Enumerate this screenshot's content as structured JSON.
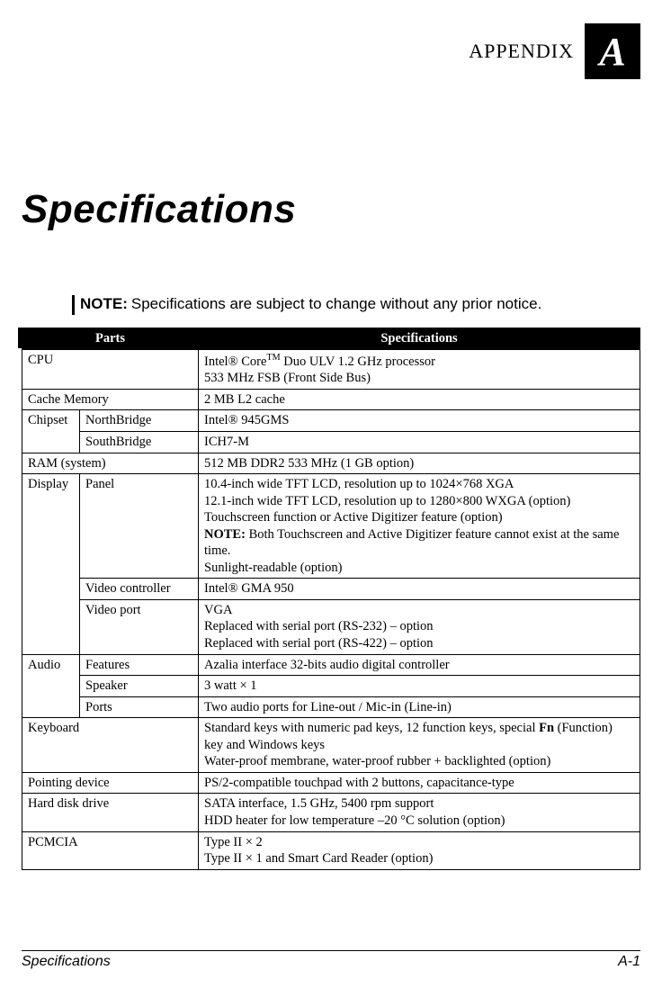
{
  "appendix": {
    "label": "APPENDIX",
    "letter": "A"
  },
  "title": "Specifications",
  "note": {
    "label": "NOTE:",
    "text": "Specifications are subject to change without any prior notice."
  },
  "table": {
    "headers": {
      "parts": "Parts",
      "specs": "Specifications"
    },
    "rows": {
      "cpu": {
        "part": "CPU",
        "spec_pre": "Intel® Core",
        "spec_sup": "TM",
        "spec_post": " Duo ULV 1.2 GHz processor",
        "spec_line2": "533 MHz FSB (Front Side Bus)"
      },
      "cache": {
        "part": "Cache Memory",
        "spec": "2 MB L2 cache"
      },
      "chipset": {
        "part": "Chipset",
        "nb": {
          "label": "NorthBridge",
          "spec": "Intel® 945GMS"
        },
        "sb": {
          "label": "SouthBridge",
          "spec": "ICH7-M"
        }
      },
      "ram": {
        "part": "RAM (system)",
        "spec": "512 MB DDR2 533 MHz (1 GB option)"
      },
      "display": {
        "part": "Display",
        "panel": {
          "label": "Panel",
          "l1": "10.4-inch wide TFT LCD, resolution up to 1024×768 XGA",
          "l2": "12.1-inch wide TFT LCD, resolution up to 1280×800 WXGA (option)",
          "l3": "Touchscreen function or Active Digitizer feature (option)",
          "l4_b": "NOTE:",
          "l4": " Both Touchscreen and Active Digitizer feature cannot exist at the same time.",
          "l5": "Sunlight-readable (option)"
        },
        "vctrl": {
          "label": "Video controller",
          "spec": "Intel® GMA 950"
        },
        "vport": {
          "label": "Video port",
          "l1": "VGA",
          "l2": "Replaced with serial port (RS-232) – option",
          "l3": "Replaced with serial port (RS-422) – option"
        }
      },
      "audio": {
        "part": "Audio",
        "feat": {
          "label": "Features",
          "spec": "Azalia interface 32-bits audio digital controller"
        },
        "spk": {
          "label": "Speaker",
          "spec": "3 watt × 1"
        },
        "ports": {
          "label": "Ports",
          "spec": "Two audio ports for Line-out / Mic-in (Line-in)"
        }
      },
      "keyboard": {
        "part": "Keyboard",
        "l1_pre": "Standard keys with numeric pad keys, 12 function keys, special ",
        "l1_b": "Fn",
        "l1_post": " (Function) key and Windows keys",
        "l2": "Water-proof membrane, water-proof rubber + backlighted (option)"
      },
      "pointing": {
        "part": "Pointing device",
        "spec": "PS/2-compatible touchpad with 2 buttons, capacitance-type"
      },
      "hdd": {
        "part": "Hard disk drive",
        "l1": "SATA interface, 1.5 GHz, 5400 rpm support",
        "l2": "HDD heater for low temperature –20 °C solution (option)"
      },
      "pcmcia": {
        "part": "PCMCIA",
        "l1": "Type II × 2",
        "l2": "Type II × 1 and Smart Card Reader (option)"
      }
    }
  },
  "footer": {
    "left": "Specifications",
    "right": "A-1"
  },
  "colors": {
    "bg": "#ffffff",
    "fg": "#000000",
    "header_bg": "#000000",
    "header_fg": "#ffffff"
  }
}
